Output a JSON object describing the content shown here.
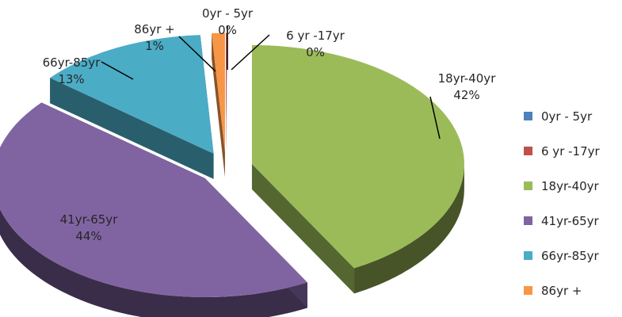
{
  "chart_data": {
    "type": "pie",
    "style": "3d-exploded",
    "title": "",
    "legend_position": "right",
    "slices": [
      {
        "label": "0yr - 5yr",
        "value": 0,
        "display": "0%",
        "color": "#4F81BD"
      },
      {
        "label": "6 yr -17yr",
        "value": 0,
        "display": "0%",
        "color": "#C0504D"
      },
      {
        "label": "18yr-40yr",
        "value": 42,
        "display": "42%",
        "color": "#9BBB59"
      },
      {
        "label": "41yr-65yr",
        "value": 44,
        "display": "44%",
        "color": "#8064A2"
      },
      {
        "label": "66yr-85yr",
        "value": 13,
        "display": "13%",
        "color": "#4BACC6"
      },
      {
        "label": "86yr +",
        "value": 1,
        "display": "1%",
        "color": "#F79646"
      }
    ]
  }
}
